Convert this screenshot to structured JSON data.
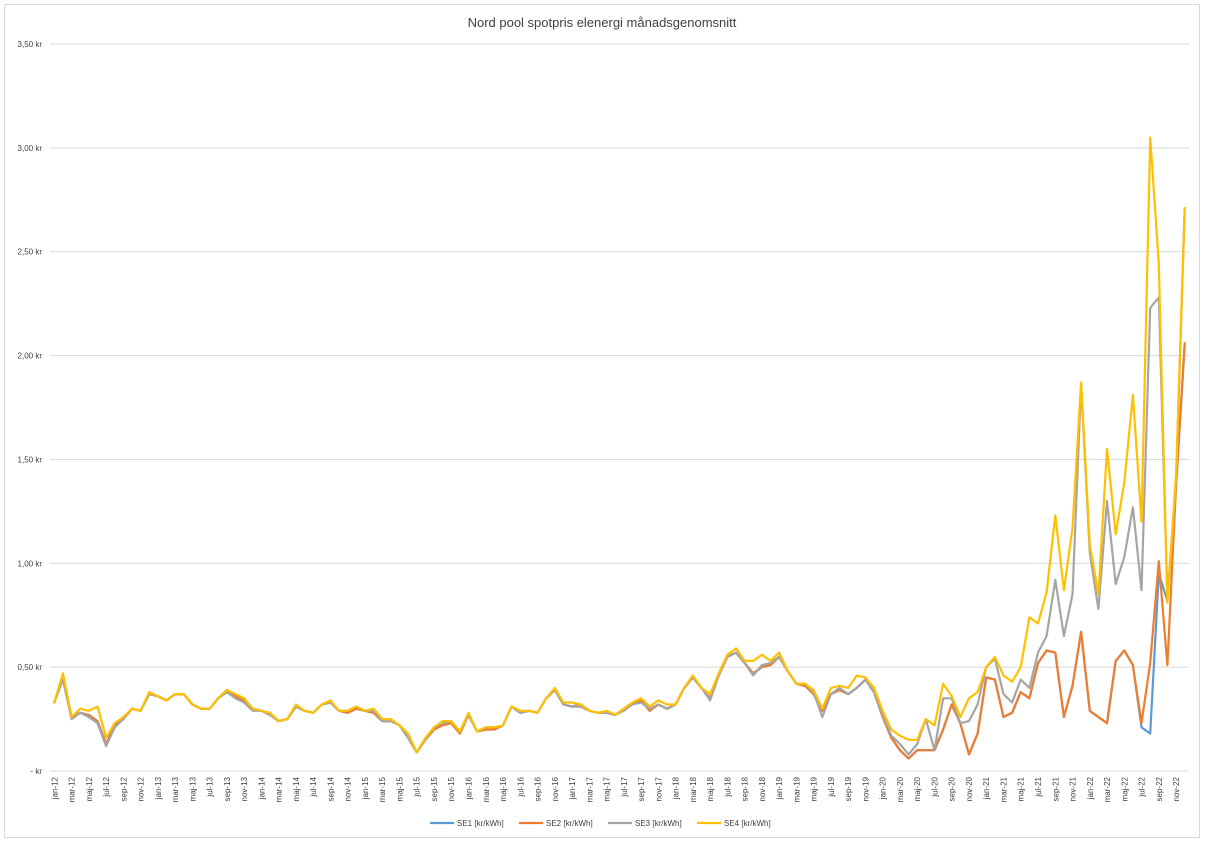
{
  "chart_data": {
    "type": "line",
    "title": "Nord pool spotpris elenergi månadsgenomsnitt",
    "xlabel": "",
    "ylabel": "",
    "ylim": [
      0,
      3.5
    ],
    "grid": true,
    "legend_position": "bottom",
    "y_ticks": [
      {
        "value": 0,
        "label": "-   kr"
      },
      {
        "value": 0.5,
        "label": "0,50 kr"
      },
      {
        "value": 1.0,
        "label": "1,00 kr"
      },
      {
        "value": 1.5,
        "label": "1,50 kr"
      },
      {
        "value": 2.0,
        "label": "2,00 kr"
      },
      {
        "value": 2.5,
        "label": "2,50 kr"
      },
      {
        "value": 3.0,
        "label": "3,00 kr"
      },
      {
        "value": 3.5,
        "label": "3,50 kr"
      }
    ],
    "x_tick_labels": [
      "jan-12",
      "mar-12",
      "maj-12",
      "jul-12",
      "sep-12",
      "nov-12",
      "jan-13",
      "mar-13",
      "maj-13",
      "jul-13",
      "sep-13",
      "nov-13",
      "jan-14",
      "mar-14",
      "maj-14",
      "jul-14",
      "sep-14",
      "nov-14",
      "jan-15",
      "mar-15",
      "maj-15",
      "jul-15",
      "sep-15",
      "nov-15",
      "jan-16",
      "mar-16",
      "maj-16",
      "jul-16",
      "sep-16",
      "nov-16",
      "jan-17",
      "mar-17",
      "maj-17",
      "jul-17",
      "sep-17",
      "nov-17",
      "jan-18",
      "mar-18",
      "maj-18",
      "jul-18",
      "sep-18",
      "nov-18",
      "jan-19",
      "mar-19",
      "maj-19",
      "jul-19",
      "sep-19",
      "nov-19",
      "jan-20",
      "mar-20",
      "maj-20",
      "jul-20",
      "sep-20",
      "nov-20",
      "jan-21",
      "mar-21",
      "maj-21",
      "jul-21",
      "sep-21",
      "nov-21",
      "jan-22",
      "mar-22",
      "maj-22",
      "jul-22",
      "sep-22",
      "nov-22"
    ],
    "months_count": 132,
    "series": [
      {
        "name": "SE1 [kr/kWh]",
        "color": "#5b9bd5",
        "values": [
          0.33,
          0.45,
          0.26,
          0.28,
          0.27,
          0.24,
          0.13,
          0.22,
          0.25,
          0.3,
          0.29,
          0.37,
          0.36,
          0.34,
          0.37,
          0.37,
          0.32,
          0.3,
          0.3,
          0.35,
          0.39,
          0.36,
          0.34,
          0.3,
          0.29,
          0.27,
          0.24,
          0.25,
          0.31,
          0.29,
          0.28,
          0.32,
          0.33,
          0.29,
          0.28,
          0.3,
          0.29,
          0.28,
          0.24,
          0.24,
          0.22,
          0.16,
          0.09,
          0.15,
          0.2,
          0.22,
          0.23,
          0.18,
          0.27,
          0.19,
          0.2,
          0.2,
          0.22,
          0.31,
          0.28,
          0.29,
          0.28,
          0.35,
          0.39,
          0.32,
          0.31,
          0.32,
          0.29,
          0.28,
          0.28,
          0.27,
          0.3,
          0.32,
          0.34,
          0.29,
          0.32,
          0.3,
          0.32,
          0.4,
          0.45,
          0.4,
          0.35,
          0.46,
          0.55,
          0.57,
          0.52,
          0.47,
          0.5,
          0.51,
          0.55,
          0.48,
          0.42,
          0.41,
          0.37,
          0.29,
          0.37,
          0.39,
          0.37,
          0.4,
          0.44,
          0.38,
          0.26,
          0.16,
          0.1,
          0.06,
          0.1,
          0.1,
          0.1,
          0.2,
          0.32,
          0.23,
          0.08,
          0.18,
          0.45,
          0.44,
          0.26,
          0.28,
          0.38,
          0.35,
          0.52,
          0.58,
          0.57,
          0.26,
          0.41,
          0.67,
          0.29,
          0.26,
          0.23,
          0.53,
          0.58,
          0.51,
          0.21,
          0.18,
          0.95,
          0.82,
          1.38,
          2.05
        ]
      },
      {
        "name": "SE2 [kr/kWh]",
        "color": "#ed7d31",
        "values": [
          0.33,
          0.45,
          0.26,
          0.28,
          0.27,
          0.24,
          0.13,
          0.22,
          0.25,
          0.3,
          0.29,
          0.37,
          0.36,
          0.34,
          0.37,
          0.37,
          0.32,
          0.3,
          0.3,
          0.35,
          0.39,
          0.36,
          0.34,
          0.3,
          0.29,
          0.27,
          0.24,
          0.25,
          0.31,
          0.29,
          0.28,
          0.32,
          0.33,
          0.29,
          0.28,
          0.3,
          0.29,
          0.28,
          0.24,
          0.24,
          0.22,
          0.16,
          0.09,
          0.15,
          0.2,
          0.22,
          0.23,
          0.18,
          0.27,
          0.19,
          0.2,
          0.2,
          0.22,
          0.31,
          0.28,
          0.29,
          0.28,
          0.35,
          0.39,
          0.32,
          0.31,
          0.32,
          0.29,
          0.28,
          0.28,
          0.27,
          0.3,
          0.32,
          0.34,
          0.29,
          0.32,
          0.3,
          0.32,
          0.4,
          0.45,
          0.4,
          0.35,
          0.46,
          0.55,
          0.57,
          0.52,
          0.47,
          0.5,
          0.51,
          0.55,
          0.48,
          0.42,
          0.41,
          0.37,
          0.29,
          0.37,
          0.39,
          0.37,
          0.4,
          0.44,
          0.38,
          0.26,
          0.16,
          0.1,
          0.06,
          0.1,
          0.1,
          0.1,
          0.2,
          0.32,
          0.23,
          0.08,
          0.18,
          0.45,
          0.44,
          0.26,
          0.28,
          0.38,
          0.35,
          0.52,
          0.58,
          0.57,
          0.26,
          0.41,
          0.67,
          0.29,
          0.26,
          0.23,
          0.53,
          0.58,
          0.51,
          0.23,
          0.52,
          1.01,
          0.51,
          1.38,
          2.06
        ]
      },
      {
        "name": "SE3 [kr/kWh]",
        "color": "#a5a5a5",
        "values": [
          0.33,
          0.44,
          0.25,
          0.28,
          0.26,
          0.23,
          0.12,
          0.21,
          0.25,
          0.3,
          0.29,
          0.37,
          0.36,
          0.34,
          0.37,
          0.37,
          0.32,
          0.3,
          0.3,
          0.35,
          0.38,
          0.35,
          0.33,
          0.29,
          0.29,
          0.27,
          0.24,
          0.25,
          0.31,
          0.29,
          0.28,
          0.32,
          0.33,
          0.29,
          0.29,
          0.31,
          0.29,
          0.29,
          0.24,
          0.24,
          0.22,
          0.16,
          0.09,
          0.15,
          0.21,
          0.23,
          0.24,
          0.19,
          0.27,
          0.19,
          0.21,
          0.21,
          0.22,
          0.31,
          0.28,
          0.29,
          0.28,
          0.35,
          0.39,
          0.32,
          0.31,
          0.31,
          0.29,
          0.28,
          0.28,
          0.27,
          0.29,
          0.32,
          0.33,
          0.3,
          0.32,
          0.3,
          0.32,
          0.4,
          0.45,
          0.4,
          0.34,
          0.46,
          0.55,
          0.57,
          0.52,
          0.46,
          0.51,
          0.52,
          0.55,
          0.48,
          0.42,
          0.42,
          0.38,
          0.26,
          0.37,
          0.4,
          0.37,
          0.4,
          0.44,
          0.38,
          0.27,
          0.17,
          0.13,
          0.08,
          0.13,
          0.25,
          0.1,
          0.35,
          0.35,
          0.23,
          0.24,
          0.32,
          0.5,
          0.54,
          0.37,
          0.33,
          0.44,
          0.4,
          0.57,
          0.65,
          0.92,
          0.65,
          0.85,
          1.86,
          1.05,
          0.78,
          1.3,
          0.9,
          1.03,
          1.27,
          0.87,
          2.23,
          2.28,
          0.83,
          1.4,
          2.71
        ]
      },
      {
        "name": "SE4 [kr/kWh]",
        "color": "#ffc000",
        "values": [
          0.33,
          0.47,
          0.26,
          0.3,
          0.29,
          0.31,
          0.16,
          0.23,
          0.26,
          0.3,
          0.29,
          0.38,
          0.36,
          0.34,
          0.37,
          0.37,
          0.32,
          0.3,
          0.3,
          0.35,
          0.39,
          0.37,
          0.35,
          0.3,
          0.29,
          0.28,
          0.24,
          0.25,
          0.32,
          0.29,
          0.28,
          0.32,
          0.34,
          0.29,
          0.29,
          0.31,
          0.29,
          0.3,
          0.25,
          0.25,
          0.22,
          0.18,
          0.09,
          0.16,
          0.21,
          0.24,
          0.24,
          0.19,
          0.28,
          0.19,
          0.21,
          0.21,
          0.22,
          0.31,
          0.29,
          0.29,
          0.28,
          0.35,
          0.4,
          0.33,
          0.33,
          0.32,
          0.29,
          0.28,
          0.29,
          0.27,
          0.3,
          0.33,
          0.35,
          0.31,
          0.34,
          0.32,
          0.32,
          0.4,
          0.46,
          0.4,
          0.37,
          0.47,
          0.56,
          0.59,
          0.53,
          0.53,
          0.56,
          0.53,
          0.57,
          0.48,
          0.42,
          0.42,
          0.39,
          0.3,
          0.4,
          0.41,
          0.4,
          0.46,
          0.45,
          0.4,
          0.29,
          0.2,
          0.17,
          0.15,
          0.15,
          0.25,
          0.22,
          0.42,
          0.36,
          0.26,
          0.35,
          0.38,
          0.5,
          0.55,
          0.46,
          0.43,
          0.5,
          0.74,
          0.71,
          0.86,
          1.23,
          0.87,
          1.17,
          1.87,
          1.09,
          0.85,
          1.55,
          1.14,
          1.39,
          1.81,
          1.2,
          3.05,
          2.44,
          0.81,
          1.43,
          2.71
        ]
      }
    ]
  }
}
